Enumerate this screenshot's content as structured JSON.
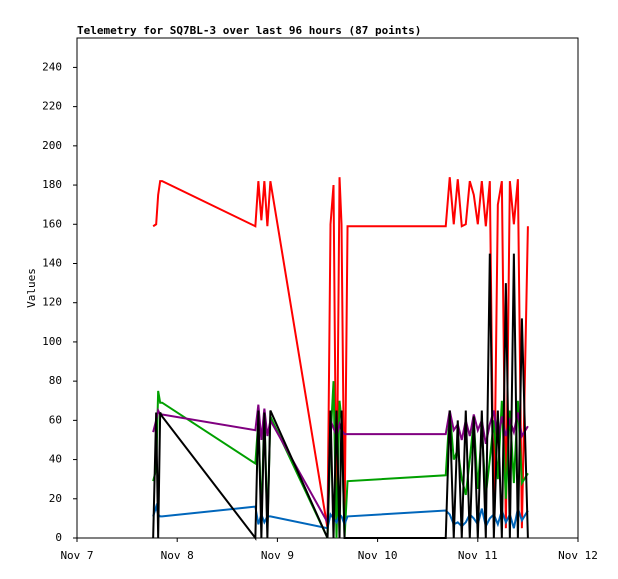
{
  "chart_data": {
    "type": "line",
    "title": "Telemetry for SQ7BL-3 over last 96 hours (87 points)",
    "y_label": "Values",
    "x": [
      0.76,
      0.79,
      0.81,
      0.83,
      0.85,
      1.78,
      1.81,
      1.84,
      1.87,
      1.9,
      1.93,
      2.5,
      2.53,
      2.56,
      2.59,
      2.62,
      2.64,
      2.67,
      2.7,
      3.68,
      3.72,
      3.76,
      3.8,
      3.84,
      3.88,
      3.92,
      3.96,
      4.0,
      4.04,
      4.08,
      4.12,
      4.16,
      4.2,
      4.24,
      4.28,
      4.32,
      4.36,
      4.4,
      4.44,
      4.5
    ],
    "series": [
      {
        "color": "#ff0000",
        "values": [
          159,
          160,
          175,
          182,
          182,
          159,
          182,
          162,
          182,
          159,
          182,
          5,
          160,
          180,
          5,
          184,
          160,
          5,
          159,
          159,
          184,
          160,
          183,
          159,
          160,
          182,
          175,
          160,
          182,
          159,
          182,
          5,
          170,
          182,
          5,
          182,
          160,
          183,
          5,
          159
        ]
      },
      {
        "color": "#00a000",
        "values": [
          29,
          35,
          75,
          69,
          69,
          38,
          60,
          10,
          65,
          5,
          62,
          0,
          50,
          80,
          0,
          70,
          60,
          0,
          29,
          32,
          65,
          40,
          45,
          30,
          22,
          40,
          60,
          25,
          55,
          22,
          40,
          60,
          30,
          70,
          20,
          65,
          28,
          70,
          28,
          33
        ]
      },
      {
        "color": "#0066bb",
        "values": [
          11,
          16,
          12,
          11,
          11,
          16,
          7,
          12,
          8,
          11,
          11,
          5,
          12,
          10,
          8,
          12,
          11,
          7,
          11,
          14,
          12,
          7,
          8,
          6,
          8,
          12,
          10,
          7,
          15,
          6,
          10,
          12,
          7,
          14,
          8,
          12,
          5,
          15,
          9,
          14
        ]
      },
      {
        "color": "#800080",
        "values": [
          54,
          60,
          65,
          63,
          63,
          55,
          68,
          50,
          66,
          52,
          60,
          8,
          60,
          56,
          52,
          58,
          55,
          53,
          53,
          53,
          65,
          55,
          58,
          50,
          60,
          52,
          63,
          55,
          60,
          48,
          58,
          65,
          50,
          62,
          52,
          60,
          54,
          64,
          52,
          57
        ]
      },
      {
        "color": "#000000",
        "values": [
          0,
          64,
          0,
          64,
          62,
          0,
          65,
          0,
          64,
          0,
          65,
          0,
          65,
          0,
          65,
          0,
          65,
          0,
          0,
          0,
          65,
          0,
          60,
          0,
          65,
          0,
          62,
          0,
          65,
          0,
          145,
          0,
          65,
          0,
          130,
          0,
          145,
          0,
          112,
          0
        ]
      }
    ],
    "xlim": [
      0,
      5
    ],
    "xticks": [
      {
        "value": 0,
        "label": "Nov 7"
      },
      {
        "value": 1,
        "label": "Nov 8"
      },
      {
        "value": 2,
        "label": "Nov 9"
      },
      {
        "value": 3,
        "label": "Nov 10"
      },
      {
        "value": 4,
        "label": "Nov 11"
      },
      {
        "value": 5,
        "label": "Nov 12"
      }
    ],
    "ylim": [
      0,
      255
    ],
    "yticks": [
      0,
      20,
      40,
      60,
      80,
      100,
      120,
      140,
      160,
      180,
      200,
      220,
      240
    ]
  }
}
